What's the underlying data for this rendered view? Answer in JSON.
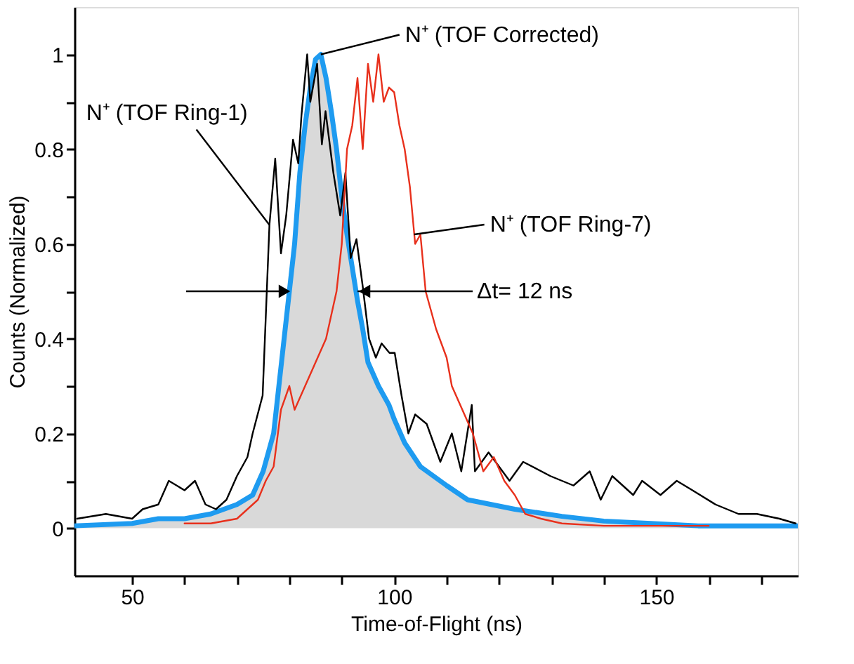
{
  "chart_data": {
    "type": "line",
    "xlabel": "Time-of-Flight (ns)",
    "ylabel": "Counts (Normalized)",
    "xlim": [
      39,
      177
    ],
    "ylim": [
      -0.1,
      1.1
    ],
    "xticks": [
      50,
      {
        "value": 60,
        "label": null
      },
      {
        "value": 70,
        "label": null
      },
      {
        "value": 80,
        "label": null
      },
      {
        "value": 90,
        "label": null
      },
      100,
      {
        "value": 110,
        "label": null
      },
      {
        "value": 120,
        "label": null
      },
      {
        "value": 130,
        "label": null
      },
      {
        "value": 140,
        "label": null
      },
      150,
      {
        "value": 160,
        "label": null
      },
      {
        "value": 170,
        "label": null
      }
    ],
    "yticks": [
      0,
      {
        "value": 0.1,
        "label": null
      },
      0.2,
      {
        "value": 0.3,
        "label": null
      },
      0.4,
      {
        "value": 0.5,
        "label": null
      },
      0.6,
      {
        "value": 0.7,
        "label": null
      },
      0.8,
      {
        "value": 0.9,
        "label": null
      },
      1
    ],
    "line_style": "solid",
    "series": [
      {
        "color": "#000000",
        "x": [
          39.5,
          45,
          50,
          52,
          55,
          57,
          60,
          62,
          64,
          66,
          68,
          70,
          72,
          73,
          74.9,
          76.2,
          77.3,
          78.4,
          79.4,
          80.7,
          81.7,
          82.3,
          83.4,
          84,
          85.3,
          86.2,
          86.9,
          88.4,
          89.7,
          90.7,
          91.7,
          92.8,
          94,
          95.2,
          96.5,
          97.6,
          99.1,
          100.1,
          101.4,
          102.7,
          104,
          106.2,
          108.8,
          111,
          112.8,
          114.8,
          115.4,
          118,
          122,
          124.6,
          129.8,
          134.2,
          137.3,
          139.4,
          141.6,
          145.6,
          147.3,
          150.8,
          153.9,
          156.9,
          161.3,
          165.7,
          169.2,
          173.5,
          176.6
        ],
        "values": [
          0.02,
          0.03,
          0.02,
          0.04,
          0.05,
          0.1,
          0.08,
          0.1,
          0.05,
          0.04,
          0.06,
          0.11,
          0.15,
          0.2,
          0.28,
          0.64,
          0.78,
          0.58,
          0.66,
          0.82,
          0.77,
          0.87,
          1.0,
          0.9,
          0.98,
          0.81,
          0.88,
          0.75,
          0.66,
          0.75,
          0.57,
          0.61,
          0.51,
          0.4,
          0.36,
          0.39,
          0.37,
          0.37,
          0.28,
          0.2,
          0.24,
          0.22,
          0.14,
          0.2,
          0.12,
          0.26,
          0.12,
          0.16,
          0.1,
          0.14,
          0.11,
          0.09,
          0.12,
          0.06,
          0.11,
          0.07,
          0.1,
          0.07,
          0.1,
          0.08,
          0.05,
          0.03,
          0.03,
          0.02,
          0.01
        ]
      },
      {
        "color": "#e8301c",
        "x": [
          60,
          65,
          70,
          72,
          74,
          75.5,
          77,
          78.4,
          80,
          81,
          83,
          85,
          87,
          89,
          90,
          91,
          92,
          93,
          94,
          95,
          96,
          97,
          98,
          99,
          100,
          101,
          102,
          103,
          104,
          105,
          106,
          108,
          110,
          111,
          113,
          115,
          117,
          119,
          121,
          123,
          125,
          128,
          132,
          140,
          150,
          160
        ],
        "values": [
          0.01,
          0.01,
          0.02,
          0.04,
          0.06,
          0.1,
          0.13,
          0.25,
          0.3,
          0.25,
          0.3,
          0.35,
          0.4,
          0.5,
          0.6,
          0.8,
          0.85,
          0.95,
          0.8,
          0.98,
          0.9,
          1.0,
          0.9,
          0.93,
          0.92,
          0.85,
          0.8,
          0.72,
          0.6,
          0.62,
          0.5,
          0.42,
          0.36,
          0.3,
          0.25,
          0.2,
          0.12,
          0.15,
          0.1,
          0.07,
          0.03,
          0.02,
          0.01,
          0.005,
          0.005,
          0.005
        ]
      },
      {
        "type": "area",
        "color": "#1e9bf0",
        "x": [
          39,
          50,
          55,
          60,
          65,
          70,
          73,
          75,
          77,
          78,
          79,
          80,
          81,
          82,
          83,
          84,
          85,
          86,
          87,
          88,
          89,
          90,
          91,
          92,
          93,
          94,
          95,
          97,
          99,
          100,
          102,
          105,
          110,
          114,
          123,
          132,
          140,
          149,
          158,
          177
        ],
        "values": [
          0.005,
          0.01,
          0.02,
          0.02,
          0.03,
          0.05,
          0.07,
          0.12,
          0.2,
          0.3,
          0.4,
          0.5,
          0.6,
          0.75,
          0.85,
          0.93,
          0.99,
          1.0,
          0.95,
          0.88,
          0.8,
          0.7,
          0.62,
          0.55,
          0.48,
          0.42,
          0.35,
          0.3,
          0.26,
          0.23,
          0.18,
          0.13,
          0.09,
          0.06,
          0.04,
          0.025,
          0.015,
          0.01,
          0.005,
          0.005
        ]
      }
    ],
    "annotations": [
      {
        "text": "N⁺ (TOF Ring-1)",
        "x": 76.2,
        "y": 0.64
      },
      {
        "text": "N⁺ (TOF Corrected)",
        "x": 86,
        "y": 1.0
      },
      {
        "text": "N⁺ (TOF Ring-7)",
        "x": 103.8,
        "y": 0.62
      },
      {
        "text": "Δt= 12 ns",
        "x": 93,
        "y": 0.5
      }
    ]
  }
}
